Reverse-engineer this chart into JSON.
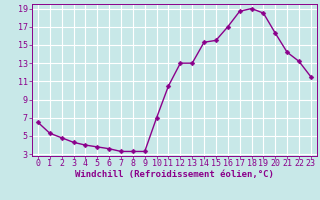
{
  "x": [
    0,
    1,
    2,
    3,
    4,
    5,
    6,
    7,
    8,
    9,
    10,
    11,
    12,
    13,
    14,
    15,
    16,
    17,
    18,
    19,
    20,
    21,
    22,
    23
  ],
  "y": [
    6.5,
    5.3,
    4.8,
    4.3,
    4.0,
    3.8,
    3.6,
    3.3,
    3.3,
    3.3,
    7.0,
    10.5,
    13.0,
    13.0,
    15.3,
    15.5,
    17.0,
    18.7,
    19.0,
    18.5,
    16.3,
    14.2,
    13.2,
    11.5
  ],
  "line_color": "#8b008b",
  "marker": "D",
  "marker_size": 2.5,
  "bg_color": "#c8e8e8",
  "grid_color": "#ffffff",
  "xlabel": "Windchill (Refroidissement éolien,°C)",
  "xlabel_color": "#8b008b",
  "tick_color": "#8b008b",
  "ylim_min": 3,
  "ylim_max": 19,
  "xlim_min": -0.5,
  "xlim_max": 23.5,
  "yticks": [
    3,
    5,
    7,
    9,
    11,
    13,
    15,
    17,
    19
  ],
  "xticks": [
    0,
    1,
    2,
    3,
    4,
    5,
    6,
    7,
    8,
    9,
    10,
    11,
    12,
    13,
    14,
    15,
    16,
    17,
    18,
    19,
    20,
    21,
    22,
    23
  ],
  "xlabel_fontsize": 6.5,
  "tick_fontsize": 6.0,
  "line_width": 1.0
}
